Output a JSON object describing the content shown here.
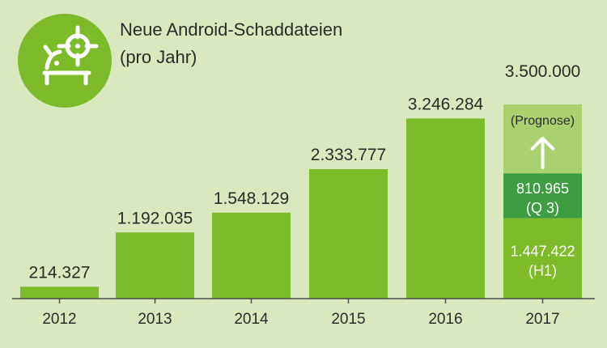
{
  "chart_data": {
    "type": "bar",
    "title_lines": [
      "Neue Android-Schaddateien",
      "(pro Jahr)"
    ],
    "icon": "android-crosshair-icon",
    "categories": [
      "2012",
      "2013",
      "2014",
      "2015",
      "2016",
      "2017"
    ],
    "values": [
      214327,
      1192035,
      1548129,
      2333777,
      3246284,
      3500000
    ],
    "value_labels": [
      "214.327",
      "1.192.035",
      "1.548.129",
      "2.333.777",
      "3.246.284",
      "3.500.000"
    ],
    "stack_2017": [
      {
        "name": "H1",
        "value": 1447422,
        "label": "1.447.422",
        "sublabel": "(H1)",
        "color": "#7dbb2a"
      },
      {
        "name": "Q 3",
        "value": 810965,
        "label": "810.965",
        "sublabel": "(Q 3)",
        "color": "#3c9e3f"
      },
      {
        "name": "Prognose",
        "value": 1241613,
        "label": "",
        "sublabel": "(Prognose)",
        "color": "#abd16e"
      }
    ],
    "ylim": [
      0,
      3500000
    ],
    "grid": false,
    "colors": {
      "background": "#d9e8bf",
      "bar": "#7dbb2a",
      "axis": "#4a4a4a",
      "icon_circle": "#7dbb2a",
      "text": "#2b2b2b",
      "white": "#ffffff"
    }
  }
}
